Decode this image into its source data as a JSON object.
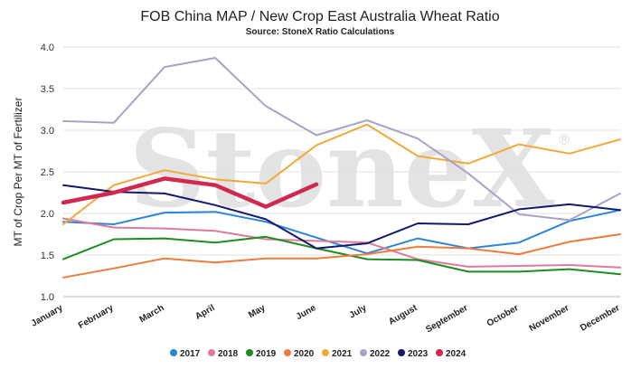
{
  "chart_data": {
    "type": "line",
    "title": "FOB China MAP / New Crop East Australia Wheat Ratio",
    "subtitle": "Source: StoneX Ratio Calculations",
    "ylabel": "MT of Crop Per MT of Fertilizer",
    "xlabel": "",
    "ylim": [
      1.0,
      4.0
    ],
    "yticks": [
      "1.0",
      "1.5",
      "2.0",
      "2.5",
      "3.0",
      "3.5",
      "4.0"
    ],
    "grid": true,
    "legend_position": "bottom",
    "watermark": "StoneX",
    "watermark_mark": "®",
    "categories": [
      "January",
      "February",
      "March",
      "April",
      "May",
      "June",
      "July",
      "August",
      "September",
      "October",
      "November",
      "December"
    ],
    "series": [
      {
        "name": "2017",
        "color": "#2b86d9",
        "values": [
          1.9,
          1.87,
          2.01,
          2.02,
          1.9,
          1.71,
          1.52,
          1.7,
          1.58,
          1.65,
          1.91,
          2.04
        ]
      },
      {
        "name": "2018",
        "color": "#e07a9a",
        "values": [
          1.94,
          1.83,
          1.82,
          1.79,
          1.69,
          1.67,
          1.65,
          1.45,
          1.36,
          1.37,
          1.38,
          1.35
        ]
      },
      {
        "name": "2019",
        "color": "#1e8c1e",
        "values": [
          1.45,
          1.69,
          1.7,
          1.65,
          1.72,
          1.58,
          1.45,
          1.44,
          1.3,
          1.3,
          1.33,
          1.27
        ]
      },
      {
        "name": "2020",
        "color": "#f07b3f",
        "values": [
          1.23,
          1.34,
          1.46,
          1.41,
          1.46,
          1.46,
          1.51,
          1.6,
          1.58,
          1.51,
          1.66,
          1.75
        ]
      },
      {
        "name": "2021",
        "color": "#f2a93b",
        "values": [
          1.87,
          2.34,
          2.52,
          2.41,
          2.36,
          2.82,
          3.07,
          2.69,
          2.6,
          2.83,
          2.72,
          2.89
        ]
      },
      {
        "name": "2022",
        "color": "#a6a4c4",
        "values": [
          3.11,
          3.09,
          3.76,
          3.87,
          3.29,
          2.94,
          3.12,
          2.9,
          2.48,
          1.99,
          1.92,
          2.24
        ]
      },
      {
        "name": "2023",
        "color": "#141a6b",
        "values": [
          2.34,
          2.26,
          2.24,
          2.1,
          1.93,
          1.58,
          1.64,
          1.88,
          1.87,
          2.05,
          2.11,
          2.04
        ]
      },
      {
        "name": "2024",
        "color": "#d0284e",
        "values": [
          2.13,
          2.25,
          2.42,
          2.34,
          2.08,
          2.35,
          null,
          null,
          null,
          null,
          null,
          null
        ]
      }
    ]
  }
}
